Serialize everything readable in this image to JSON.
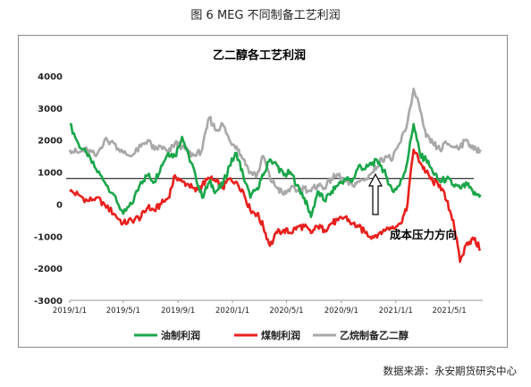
{
  "figure": {
    "caption": "图 6 MEG 不同制备工艺利润",
    "source": "数据来源：永安期货研究中心"
  },
  "chart_data": {
    "type": "line",
    "title": "乙二醇各工艺利润",
    "xlabel": "",
    "ylabel": "",
    "x_ticks": [
      "2019/1/1",
      "2019/5/1",
      "2019/9/1",
      "2020/1/1",
      "2020/5/1",
      "2020/9/1",
      "2021/1/1",
      "2021/5/1"
    ],
    "y_ticks": [
      4000,
      3000,
      2000,
      1000,
      0,
      -1000,
      -2000,
      -3000
    ],
    "ylim": [
      -3000,
      4000
    ],
    "xlim": [
      "2019-01-01",
      "2021-07-15"
    ],
    "grid": false,
    "legend": "bottom",
    "annotation": "成本压力方向",
    "reference_line": 800,
    "series": [
      {
        "name": "油制利润",
        "color": "#1aa64a",
        "points": [
          [
            "2019-01-01",
            2500
          ],
          [
            "2019-01-20",
            1900
          ],
          [
            "2019-02-10",
            1500
          ],
          [
            "2019-03-01",
            1100
          ],
          [
            "2019-03-20",
            700
          ],
          [
            "2019-04-10",
            300
          ],
          [
            "2019-05-01",
            -300
          ],
          [
            "2019-05-20",
            0
          ],
          [
            "2019-06-10",
            700
          ],
          [
            "2019-06-25",
            900
          ],
          [
            "2019-07-10",
            700
          ],
          [
            "2019-07-25",
            1200
          ],
          [
            "2019-08-10",
            1600
          ],
          [
            "2019-08-25",
            1500
          ],
          [
            "2019-09-10",
            2100
          ],
          [
            "2019-09-25",
            1500
          ],
          [
            "2019-10-10",
            900
          ],
          [
            "2019-10-25",
            200
          ],
          [
            "2019-11-10",
            700
          ],
          [
            "2019-11-25",
            400
          ],
          [
            "2019-12-10",
            600
          ],
          [
            "2019-12-25",
            1200
          ],
          [
            "2020-01-10",
            1600
          ],
          [
            "2020-01-25",
            900
          ],
          [
            "2020-02-10",
            200
          ],
          [
            "2020-02-25",
            500
          ],
          [
            "2020-03-10",
            900
          ],
          [
            "2020-03-25",
            1400
          ],
          [
            "2020-04-10",
            1200
          ],
          [
            "2020-04-25",
            900
          ],
          [
            "2020-05-10",
            1000
          ],
          [
            "2020-05-25",
            600
          ],
          [
            "2020-06-10",
            200
          ],
          [
            "2020-06-25",
            -400
          ],
          [
            "2020-07-10",
            400
          ],
          [
            "2020-07-25",
            100
          ],
          [
            "2020-08-10",
            400
          ],
          [
            "2020-08-25",
            600
          ],
          [
            "2020-09-10",
            800
          ],
          [
            "2020-09-25",
            700
          ],
          [
            "2020-10-10",
            1200
          ],
          [
            "2020-10-25",
            1100
          ],
          [
            "2020-11-10",
            1300
          ],
          [
            "2020-11-25",
            1300
          ],
          [
            "2020-12-10",
            900
          ],
          [
            "2020-12-25",
            400
          ],
          [
            "2021-01-10",
            600
          ],
          [
            "2021-01-25",
            1200
          ],
          [
            "2021-02-10",
            2500
          ],
          [
            "2021-02-25",
            1500
          ],
          [
            "2021-03-10",
            1400
          ],
          [
            "2021-03-25",
            1000
          ],
          [
            "2021-04-10",
            700
          ],
          [
            "2021-04-25",
            800
          ],
          [
            "2021-05-10",
            600
          ],
          [
            "2021-05-25",
            500
          ],
          [
            "2021-06-10",
            600
          ],
          [
            "2021-06-25",
            300
          ],
          [
            "2021-07-10",
            300
          ]
        ]
      },
      {
        "name": "煤制利润",
        "color": "#e8201d",
        "points": [
          [
            "2019-01-01",
            400
          ],
          [
            "2019-01-20",
            300
          ],
          [
            "2019-02-10",
            100
          ],
          [
            "2019-03-01",
            200
          ],
          [
            "2019-03-20",
            0
          ],
          [
            "2019-04-10",
            -300
          ],
          [
            "2019-05-01",
            -600
          ],
          [
            "2019-05-20",
            -500
          ],
          [
            "2019-06-10",
            -400
          ],
          [
            "2019-06-25",
            -100
          ],
          [
            "2019-07-10",
            -200
          ],
          [
            "2019-07-25",
            0
          ],
          [
            "2019-08-10",
            200
          ],
          [
            "2019-08-25",
            900
          ],
          [
            "2019-09-10",
            700
          ],
          [
            "2019-09-25",
            600
          ],
          [
            "2019-10-10",
            400
          ],
          [
            "2019-10-25",
            600
          ],
          [
            "2019-11-10",
            800
          ],
          [
            "2019-11-25",
            700
          ],
          [
            "2019-12-10",
            500
          ],
          [
            "2019-12-25",
            800
          ],
          [
            "2020-01-10",
            700
          ],
          [
            "2020-01-25",
            400
          ],
          [
            "2020-02-10",
            -200
          ],
          [
            "2020-02-25",
            -300
          ],
          [
            "2020-03-10",
            -700
          ],
          [
            "2020-03-25",
            -1300
          ],
          [
            "2020-04-10",
            -900
          ],
          [
            "2020-04-25",
            -800
          ],
          [
            "2020-05-10",
            -900
          ],
          [
            "2020-05-25",
            -700
          ],
          [
            "2020-06-10",
            -700
          ],
          [
            "2020-06-25",
            -900
          ],
          [
            "2020-07-10",
            -700
          ],
          [
            "2020-07-25",
            -800
          ],
          [
            "2020-08-10",
            -600
          ],
          [
            "2020-08-25",
            -500
          ],
          [
            "2020-09-10",
            -400
          ],
          [
            "2020-09-25",
            -600
          ],
          [
            "2020-10-10",
            -700
          ],
          [
            "2020-10-25",
            -900
          ],
          [
            "2020-11-10",
            -1000
          ],
          [
            "2020-11-25",
            -900
          ],
          [
            "2020-12-10",
            -800
          ],
          [
            "2020-12-25",
            -700
          ],
          [
            "2021-01-10",
            -600
          ],
          [
            "2021-01-25",
            -200
          ],
          [
            "2021-02-10",
            1700
          ],
          [
            "2021-02-25",
            1300
          ],
          [
            "2021-03-10",
            1000
          ],
          [
            "2021-03-25",
            700
          ],
          [
            "2021-04-10",
            600
          ],
          [
            "2021-04-25",
            100
          ],
          [
            "2021-05-10",
            -500
          ],
          [
            "2021-05-25",
            -1800
          ],
          [
            "2021-06-10",
            -1200
          ],
          [
            "2021-06-25",
            -1100
          ],
          [
            "2021-07-10",
            -1400
          ]
        ]
      },
      {
        "name": "乙烷制备乙二醇",
        "color": "#a8a8a8",
        "points": [
          [
            "2019-01-01",
            1700
          ],
          [
            "2019-01-20",
            1600
          ],
          [
            "2019-02-10",
            1700
          ],
          [
            "2019-03-01",
            1500
          ],
          [
            "2019-03-20",
            2000
          ],
          [
            "2019-04-10",
            1900
          ],
          [
            "2019-05-01",
            1600
          ],
          [
            "2019-05-20",
            1500
          ],
          [
            "2019-06-10",
            1800
          ],
          [
            "2019-06-25",
            2000
          ],
          [
            "2019-07-10",
            1700
          ],
          [
            "2019-07-25",
            1800
          ],
          [
            "2019-08-10",
            1600
          ],
          [
            "2019-08-25",
            1900
          ],
          [
            "2019-09-10",
            1800
          ],
          [
            "2019-09-25",
            1600
          ],
          [
            "2019-10-10",
            1500
          ],
          [
            "2019-10-25",
            1700
          ],
          [
            "2019-11-10",
            2700
          ],
          [
            "2019-11-25",
            2300
          ],
          [
            "2019-12-10",
            2500
          ],
          [
            "2019-12-25",
            2000
          ],
          [
            "2020-01-10",
            1800
          ],
          [
            "2020-01-25",
            1400
          ],
          [
            "2020-02-10",
            1000
          ],
          [
            "2020-02-25",
            900
          ],
          [
            "2020-03-10",
            1500
          ],
          [
            "2020-03-25",
            800
          ],
          [
            "2020-04-10",
            500
          ],
          [
            "2020-04-25",
            300
          ],
          [
            "2020-05-10",
            500
          ],
          [
            "2020-05-25",
            400
          ],
          [
            "2020-06-10",
            500
          ],
          [
            "2020-06-25",
            400
          ],
          [
            "2020-07-10",
            600
          ],
          [
            "2020-07-25",
            500
          ],
          [
            "2020-08-10",
            800
          ],
          [
            "2020-08-25",
            900
          ],
          [
            "2020-09-10",
            700
          ],
          [
            "2020-09-25",
            600
          ],
          [
            "2020-10-10",
            700
          ],
          [
            "2020-10-25",
            800
          ],
          [
            "2020-11-10",
            1000
          ],
          [
            "2020-11-25",
            1300
          ],
          [
            "2020-12-10",
            1500
          ],
          [
            "2020-12-25",
            1400
          ],
          [
            "2021-01-10",
            1900
          ],
          [
            "2021-01-25",
            2400
          ],
          [
            "2021-02-10",
            3600
          ],
          [
            "2021-02-25",
            2900
          ],
          [
            "2021-03-10",
            2100
          ],
          [
            "2021-03-25",
            1900
          ],
          [
            "2021-04-10",
            1700
          ],
          [
            "2021-04-25",
            1900
          ],
          [
            "2021-05-10",
            1800
          ],
          [
            "2021-05-25",
            1800
          ],
          [
            "2021-06-10",
            2000
          ],
          [
            "2021-06-25",
            1700
          ],
          [
            "2021-07-10",
            1700
          ]
        ]
      }
    ]
  }
}
